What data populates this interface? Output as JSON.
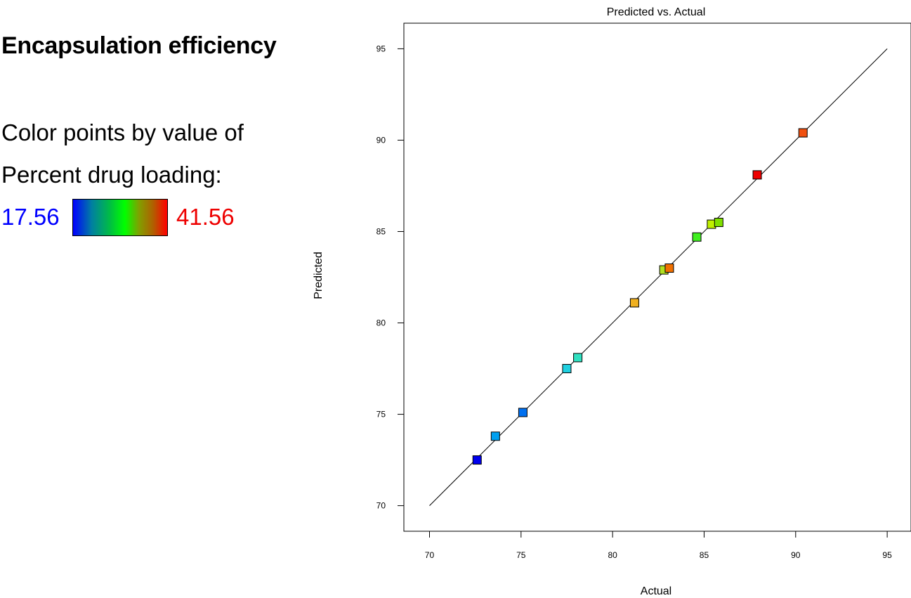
{
  "response": {
    "title": "Encapsulation efficiency"
  },
  "legend": {
    "line1": "Color points by value of",
    "line2": "Percent drug loading:",
    "min_label": "17.56",
    "max_label": "41.56",
    "min_value": 17.56,
    "max_value": 41.56,
    "min_color": "#0000ff",
    "max_color": "#ff0000"
  },
  "chart_data": {
    "type": "scatter",
    "title": "Predicted vs. Actual",
    "xlabel": "Actual",
    "ylabel": "Predicted",
    "xlim": [
      68.6,
      96.3
    ],
    "ylim": [
      68.6,
      96.4
    ],
    "xticks": [
      70,
      75,
      80,
      85,
      90,
      95
    ],
    "yticks": [
      70,
      75,
      80,
      85,
      90,
      95
    ],
    "grid": false,
    "reference_line": {
      "from": [
        70,
        70
      ],
      "to": [
        95,
        95
      ],
      "color": "#000000"
    },
    "points": [
      {
        "x": 72.6,
        "y": 72.5,
        "color": "#0000ee"
      },
      {
        "x": 73.6,
        "y": 73.8,
        "color": "#00a0f0"
      },
      {
        "x": 75.1,
        "y": 75.1,
        "color": "#0070f0"
      },
      {
        "x": 77.5,
        "y": 77.5,
        "color": "#20d0e0"
      },
      {
        "x": 78.1,
        "y": 78.1,
        "color": "#30e0c0"
      },
      {
        "x": 81.2,
        "y": 81.1,
        "color": "#f0b020"
      },
      {
        "x": 82.8,
        "y": 82.9,
        "color": "#b0e020"
      },
      {
        "x": 83.1,
        "y": 83.0,
        "color": "#f07000"
      },
      {
        "x": 84.6,
        "y": 84.7,
        "color": "#40f020"
      },
      {
        "x": 85.4,
        "y": 85.4,
        "color": "#c0f000"
      },
      {
        "x": 85.8,
        "y": 85.5,
        "color": "#80e000"
      },
      {
        "x": 87.9,
        "y": 88.1,
        "color": "#ee0000"
      },
      {
        "x": 90.4,
        "y": 90.4,
        "color": "#f05010"
      }
    ]
  }
}
